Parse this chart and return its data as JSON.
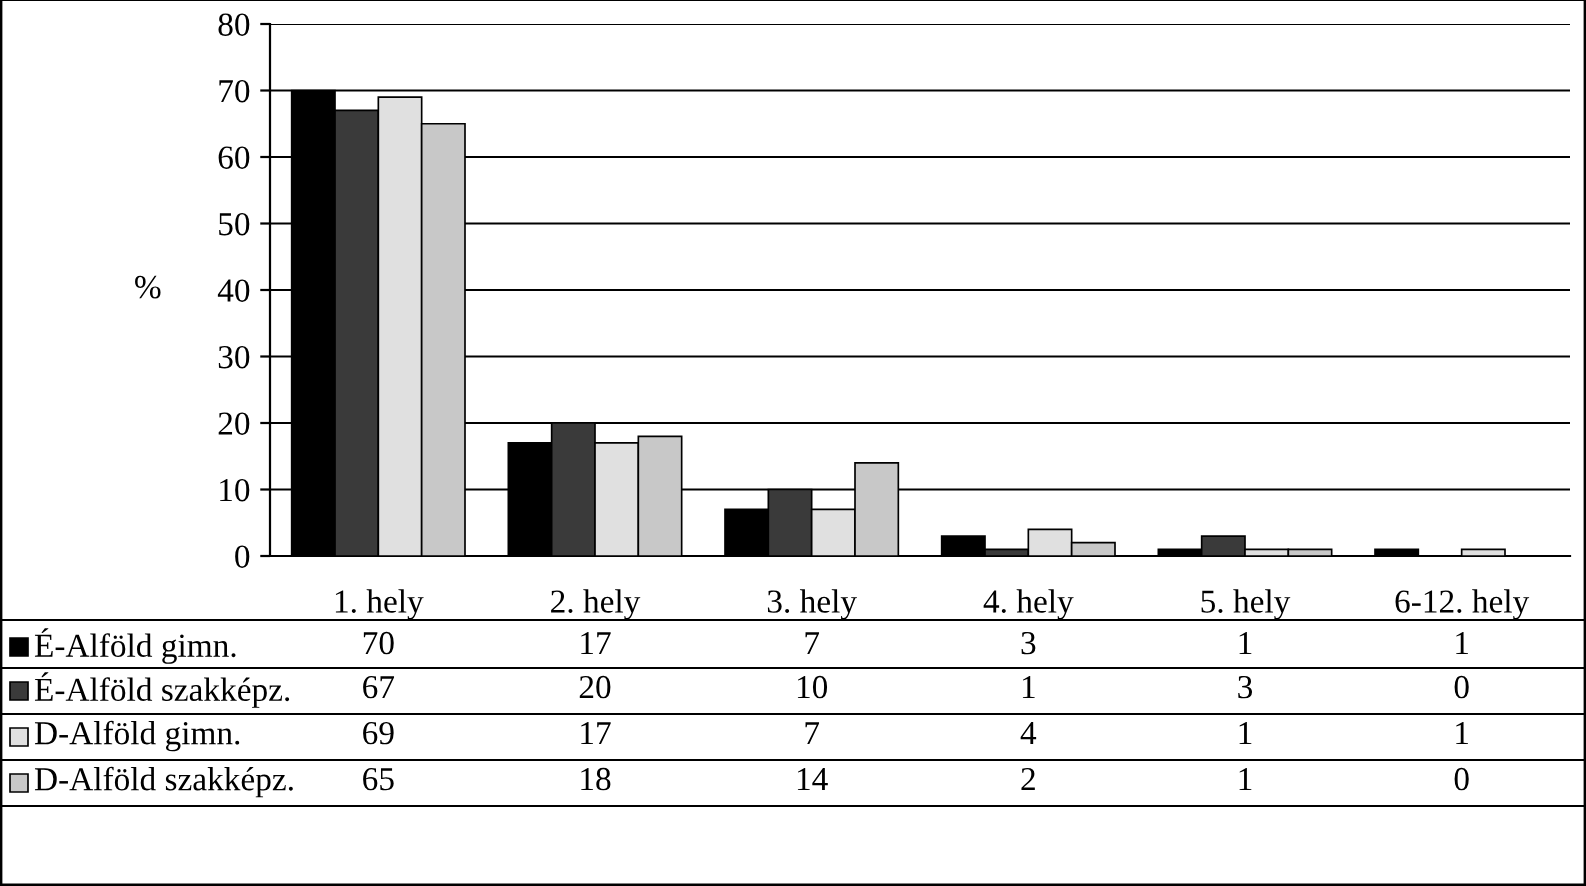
{
  "chart_data": {
    "type": "bar",
    "ylabel": "%",
    "categories": [
      "1. hely",
      "2. hely",
      "3. hely",
      "4. hely",
      "5. hely",
      "6-12. hely"
    ],
    "series": [
      {
        "name": "É-Alföld gimn.",
        "color": "#000000",
        "values": [
          70,
          17,
          7,
          3,
          1,
          1
        ]
      },
      {
        "name": "É-Alföld szakképz.",
        "color": "#3a3a3a",
        "values": [
          67,
          20,
          10,
          1,
          3,
          0
        ]
      },
      {
        "name": "D-Alföld gimn.",
        "color": "#e0e0e0",
        "values": [
          69,
          17,
          7,
          4,
          1,
          1
        ]
      },
      {
        "name": "D-Alföld szakképz.",
        "color": "#c8c8c8",
        "values": [
          65,
          18,
          14,
          2,
          1,
          0
        ]
      }
    ],
    "ylim": [
      0,
      80
    ],
    "yticks": [
      0,
      10,
      20,
      30,
      40,
      50,
      60,
      70,
      80
    ],
    "grid": "y",
    "legend": "bottom",
    "data_labels": true
  }
}
